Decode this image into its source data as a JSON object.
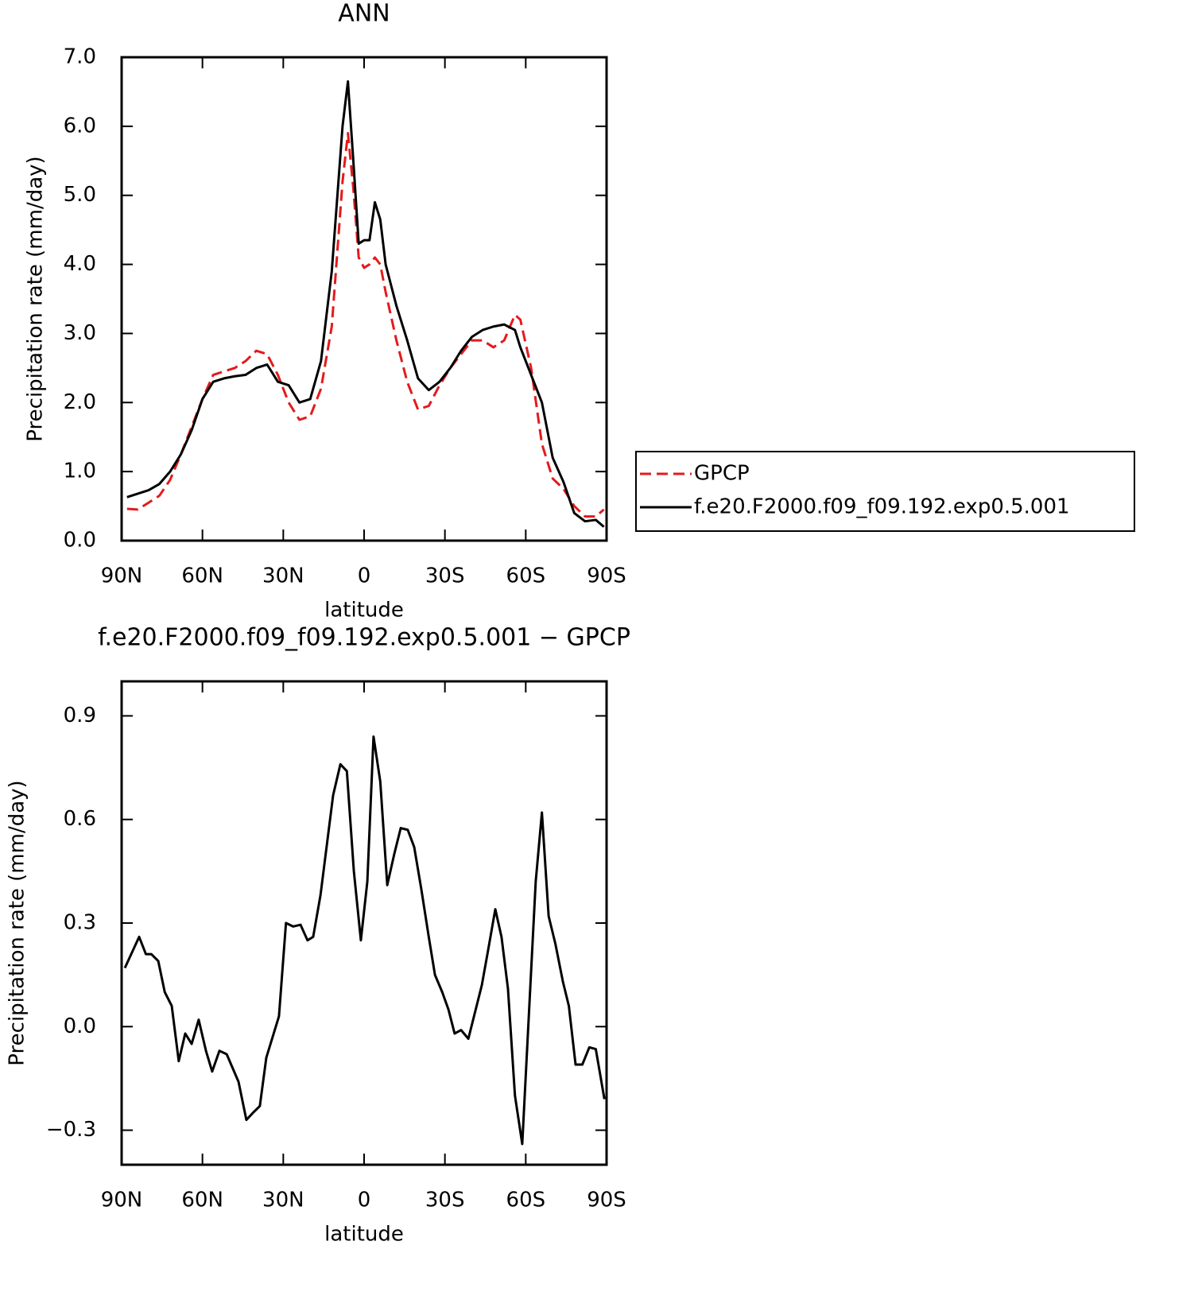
{
  "chart_data": [
    {
      "type": "line",
      "title": "ANN",
      "xlabel": "latitude",
      "ylabel": "Precipitation rate (mm/day)",
      "x": [
        88,
        84,
        80,
        76,
        72,
        68,
        64,
        60,
        56,
        52,
        48,
        44,
        40,
        36,
        32,
        28,
        24,
        20,
        16,
        12,
        8,
        6,
        4,
        2,
        0,
        -2,
        -4,
        -6,
        -8,
        -12,
        -16,
        -20,
        -24,
        -28,
        -32,
        -36,
        -40,
        -44,
        -48,
        -52,
        -56,
        -58,
        -62,
        -66,
        -70,
        -74,
        -78,
        -82,
        -86,
        -89
      ],
      "series": [
        {
          "name": "GPCP",
          "color": "#e41a1c",
          "linestyle": "dashed",
          "values": [
            0.46,
            0.45,
            0.55,
            0.65,
            0.88,
            1.25,
            1.65,
            2.05,
            2.4,
            2.45,
            2.5,
            2.6,
            2.75,
            2.7,
            2.4,
            2.0,
            1.75,
            1.8,
            2.2,
            3.1,
            5.2,
            5.9,
            5.1,
            4.1,
            3.95,
            4.0,
            4.1,
            4.0,
            3.6,
            2.9,
            2.3,
            1.9,
            1.95,
            2.25,
            2.5,
            2.7,
            2.9,
            2.9,
            2.8,
            2.9,
            3.27,
            3.2,
            2.5,
            1.4,
            0.9,
            0.75,
            0.5,
            0.35,
            0.35,
            0.45
          ]
        },
        {
          "name": "f.e20.F2000.f09_f09.192.exp0.5.001",
          "color": "#000000",
          "linestyle": "solid",
          "values": [
            0.63,
            0.68,
            0.73,
            0.82,
            1.0,
            1.25,
            1.6,
            2.05,
            2.3,
            2.35,
            2.38,
            2.4,
            2.5,
            2.55,
            2.3,
            2.25,
            2.0,
            2.05,
            2.6,
            3.9,
            6.0,
            6.65,
            5.5,
            4.3,
            4.35,
            4.35,
            4.9,
            4.65,
            4.0,
            3.4,
            2.9,
            2.35,
            2.18,
            2.3,
            2.5,
            2.75,
            2.95,
            3.05,
            3.1,
            3.13,
            3.05,
            2.8,
            2.4,
            2.0,
            1.2,
            0.85,
            0.4,
            0.28,
            0.3,
            0.2
          ]
        }
      ],
      "xlim": [
        90,
        -90
      ],
      "xticks": [
        {
          "value": 90,
          "label": "90N"
        },
        {
          "value": 60,
          "label": "60N"
        },
        {
          "value": 30,
          "label": "30N"
        },
        0,
        {
          "value": -30,
          "label": "30S"
        },
        {
          "value": -60,
          "label": "60S"
        },
        {
          "value": -90,
          "label": "90S"
        }
      ],
      "ylim": [
        0,
        7
      ],
      "yticks": [
        {
          "value": 0,
          "label": "0.0"
        },
        {
          "value": 1,
          "label": "1.0"
        },
        {
          "value": 2,
          "label": "2.0"
        },
        {
          "value": 3,
          "label": "3.0"
        },
        {
          "value": 4,
          "label": "4.0"
        },
        {
          "value": 5,
          "label": "5.0"
        },
        {
          "value": 6,
          "label": "6.0"
        },
        {
          "value": 7,
          "label": "7.0"
        }
      ],
      "legend": "right"
    },
    {
      "type": "line",
      "title": "f.e20.F2000.f09_f09.192.exp0.5.001 − GPCP",
      "xlabel": "latitude",
      "ylabel": "Precipitation rate (mm/day)",
      "x": [
        88.8,
        83.5,
        81,
        79,
        76.4,
        74,
        71.4,
        68.8,
        66.4,
        64,
        61.4,
        58.7,
        56.4,
        53.7,
        51,
        46.6,
        43.7,
        41.3,
        38.7,
        36.3,
        31.6,
        29,
        26.3,
        23.6,
        21,
        18.9,
        16.2,
        11.5,
        8.8,
        6.4,
        3.8,
        1.2,
        -1.2,
        -3.5,
        -6,
        -8.6,
        -11.2,
        -13.6,
        -16.2,
        -18.6,
        -21.2,
        -24,
        -26.3,
        -29,
        -31.3,
        -33.6,
        -36,
        -38.7,
        -43.7,
        -46,
        -48.7,
        -51,
        -53.4,
        -56,
        -58.7,
        -63.7,
        -66,
        -68.5,
        -71,
        -73.8,
        -76,
        -78.5,
        -81,
        -83.6,
        -86,
        -89.2
      ],
      "color": "#000000",
      "values": [
        0.17,
        0.26,
        0.21,
        0.21,
        0.19,
        0.1,
        0.06,
        -0.1,
        -0.02,
        -0.05,
        0.02,
        -0.07,
        -0.13,
        -0.07,
        -0.08,
        -0.16,
        -0.27,
        -0.25,
        -0.23,
        -0.09,
        0.03,
        0.3,
        0.29,
        0.295,
        0.25,
        0.26,
        0.38,
        0.67,
        0.76,
        0.74,
        0.45,
        0.25,
        0.42,
        0.84,
        0.71,
        0.41,
        0.5,
        0.575,
        0.57,
        0.52,
        0.4,
        0.26,
        0.15,
        0.1,
        0.05,
        -0.02,
        -0.01,
        -0.035,
        0.12,
        0.22,
        0.34,
        0.26,
        0.11,
        -0.2,
        -0.34,
        0.42,
        0.62,
        0.32,
        0.24,
        0.13,
        0.06,
        -0.11,
        -0.11,
        -0.06,
        -0.065,
        -0.21
      ],
      "xlim": [
        90,
        -90
      ],
      "xticks": [
        {
          "value": 90,
          "label": "90N"
        },
        {
          "value": 60,
          "label": "60N"
        },
        {
          "value": 30,
          "label": "30N"
        },
        0,
        {
          "value": -30,
          "label": "30S"
        },
        {
          "value": -60,
          "label": "60S"
        },
        {
          "value": -90,
          "label": "90S"
        }
      ],
      "ylim": [
        -0.4,
        1.0
      ],
      "yticks": [
        {
          "value": -0.3,
          "label": "−0.3"
        },
        {
          "value": 0,
          "label": "0.0"
        },
        0.3,
        0.6,
        0.9
      ]
    }
  ]
}
